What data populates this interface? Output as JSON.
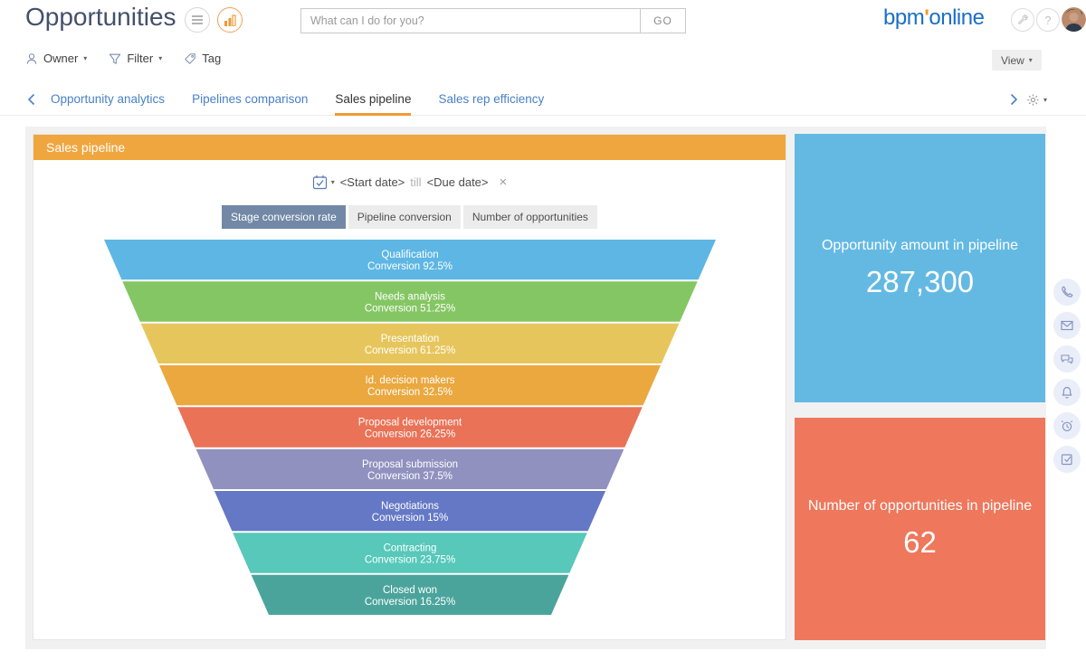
{
  "header": {
    "title": "Opportunities",
    "search_placeholder": "What can I do for you?",
    "go_label": "GO",
    "logo": {
      "left": "bpm",
      "apostrophe": "'",
      "right": "online"
    },
    "help_glyph": "?"
  },
  "toolbar": {
    "owner_label": "Owner",
    "filter_label": "Filter",
    "tag_label": "Tag",
    "view_label": "View"
  },
  "tabs": [
    {
      "label": "Opportunity analytics",
      "active": false
    },
    {
      "label": "Pipelines comparison",
      "active": false
    },
    {
      "label": "Sales pipeline",
      "active": true
    },
    {
      "label": "Sales rep efficiency",
      "active": false
    }
  ],
  "panel": {
    "title": "Sales pipeline"
  },
  "date_filter": {
    "start": "<Start date>",
    "separator": "till",
    "end": "<Due date>",
    "clear_glyph": "×"
  },
  "view_toggles": [
    {
      "label": "Stage conversion rate",
      "active": true
    },
    {
      "label": "Pipeline conversion",
      "active": false
    },
    {
      "label": "Number of opportunities",
      "active": false
    }
  ],
  "chart_data": {
    "type": "funnel",
    "title": "Sales pipeline",
    "label_prefix": "Conversion",
    "stages": [
      {
        "name": "Qualification",
        "conversion_pct": 92.5,
        "color": "#5db6e3"
      },
      {
        "name": "Needs analysis",
        "conversion_pct": 51.25,
        "color": "#84c663"
      },
      {
        "name": "Presentation",
        "conversion_pct": 61.25,
        "color": "#e6c65c"
      },
      {
        "name": "Id. decision makers",
        "conversion_pct": 32.5,
        "color": "#eaa83f"
      },
      {
        "name": "Proposal development",
        "conversion_pct": 26.25,
        "color": "#e97257"
      },
      {
        "name": "Proposal submission",
        "conversion_pct": 37.5,
        "color": "#9091bf"
      },
      {
        "name": "Negotiations",
        "conversion_pct": 15,
        "color": "#6478c6"
      },
      {
        "name": "Contracting",
        "conversion_pct": 23.75,
        "color": "#57c8ba"
      },
      {
        "name": "Closed won",
        "conversion_pct": 16.25,
        "color": "#4ba49c"
      }
    ]
  },
  "tiles": [
    {
      "title": "Opportunity amount in pipeline",
      "value": "287,300",
      "color": "#64b9e3"
    },
    {
      "title": "Number of opportunities in pipeline",
      "value": "62",
      "color": "#ee775c"
    }
  ],
  "colors": {
    "accent_orange": "#f0a63f",
    "tab_underline": "#f09a36",
    "tab_link_blue": "#4a80c8",
    "active_toggle": "#7288a6",
    "logo_blue": "#1a6fc7",
    "content_bg": "#f1f1f2"
  }
}
